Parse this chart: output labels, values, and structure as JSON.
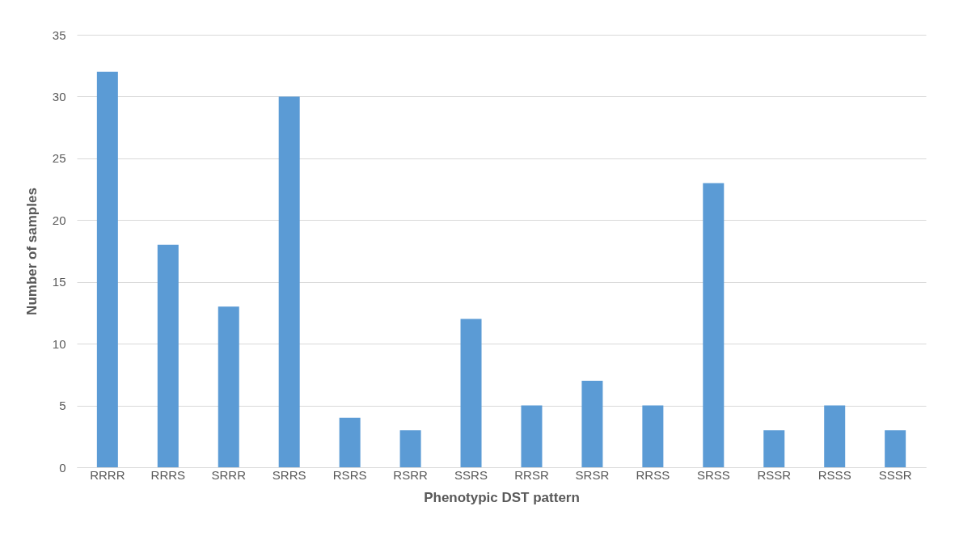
{
  "chart_data": {
    "type": "bar",
    "xlabel": "Phenotypic DST pattern",
    "ylabel": "Number of samples",
    "categories": [
      "RRRR",
      "RRRS",
      "SRRR",
      "SRRS",
      "RSRS",
      "RSRR",
      "SSRS",
      "RRSR",
      "SRSR",
      "RRSS",
      "SRSS",
      "RSSR",
      "RSSS",
      "SSSR"
    ],
    "values": [
      32,
      18,
      13,
      30,
      4,
      3,
      12,
      5,
      7,
      5,
      23,
      3,
      5,
      3
    ],
    "color": "#5b9bd5",
    "ylim": [
      0,
      35
    ],
    "yticks": [
      0,
      5,
      10,
      15,
      20,
      25,
      30,
      35
    ],
    "grid": "y"
  }
}
